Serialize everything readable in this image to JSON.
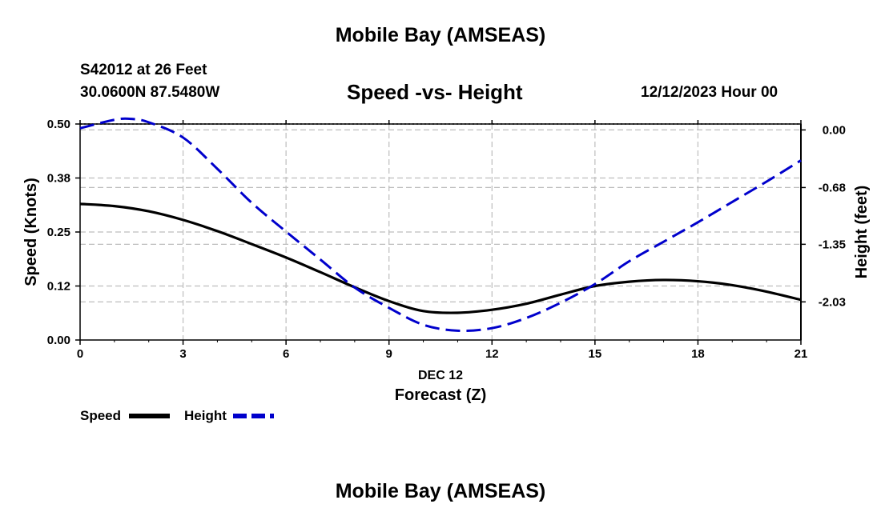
{
  "header": {
    "title": "Mobile Bay (AMSEAS)",
    "station": "S42012 at 26 Feet",
    "coordinates": "30.0600N  87.5480W",
    "date": "12/12/2023 Hour 00"
  },
  "footer": {
    "title": "Mobile Bay (AMSEAS)"
  },
  "chart_data": {
    "type": "line",
    "title": "Speed -vs- Height",
    "xlabel": "Forecast (Z)",
    "xdate": "DEC 12",
    "ylabel": "Speed (Knots)",
    "y2label": "Height (feet)",
    "xlim": [
      0,
      21
    ],
    "ylim": [
      0,
      0.5
    ],
    "y2lim": [
      -2.48,
      0.07
    ],
    "xticks": [
      0,
      3,
      6,
      9,
      12,
      15,
      18,
      21
    ],
    "yticks": [
      {
        "value": 0.0,
        "label": "0.00"
      },
      {
        "value": 0.125,
        "label": "0.12"
      },
      {
        "value": 0.25,
        "label": "0.25"
      },
      {
        "value": 0.375,
        "label": "0.38"
      },
      {
        "value": 0.5,
        "label": "0.50"
      }
    ],
    "y2ticks": [
      {
        "value": 0.0,
        "label": "0.00"
      },
      {
        "value": -0.68,
        "label": "-0.68"
      },
      {
        "value": -1.35,
        "label": "-1.35"
      },
      {
        "value": -2.03,
        "label": "-2.03"
      }
    ],
    "grid": true,
    "series": [
      {
        "name": "Speed",
        "axis": "left",
        "color": "#000000",
        "style": "solid",
        "x": [
          0,
          1,
          2,
          3,
          4,
          5,
          6,
          7,
          8,
          9,
          10,
          11,
          12,
          13,
          14,
          15,
          16,
          17,
          18,
          19,
          20,
          21
        ],
        "y": [
          0.315,
          0.31,
          0.298,
          0.278,
          0.252,
          0.222,
          0.191,
          0.157,
          0.122,
          0.09,
          0.067,
          0.063,
          0.07,
          0.084,
          0.105,
          0.125,
          0.135,
          0.139,
          0.136,
          0.127,
          0.112,
          0.093
        ]
      },
      {
        "name": "Height",
        "axis": "right",
        "color": "#0000cc",
        "style": "dashed",
        "x": [
          0,
          1,
          1.5,
          2,
          3,
          4,
          5,
          6,
          7,
          8,
          9,
          10,
          11,
          12,
          13,
          14,
          15,
          16,
          17,
          18,
          19,
          20,
          21
        ],
        "y": [
          0.02,
          0.12,
          0.13,
          0.09,
          -0.09,
          -0.46,
          -0.86,
          -1.2,
          -1.53,
          -1.86,
          -2.1,
          -2.3,
          -2.37,
          -2.34,
          -2.22,
          -2.04,
          -1.82,
          -1.55,
          -1.32,
          -1.09,
          -0.85,
          -0.61,
          -0.36
        ]
      }
    ],
    "legend": [
      {
        "label": "Speed",
        "color": "#000000",
        "style": "solid"
      },
      {
        "label": "Height",
        "color": "#0000cc",
        "style": "dashed"
      }
    ],
    "legend_position": "bottom-left"
  }
}
